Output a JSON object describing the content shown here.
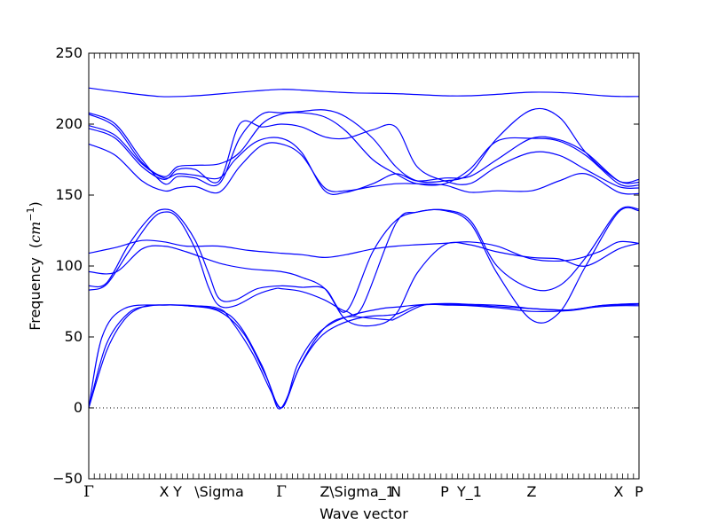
{
  "chart_data": {
    "type": "line",
    "xlabel": "Wave vector",
    "ylabel": "Frequency",
    "ylabel_unit": "cm",
    "ylabel_unit_exp": "−1",
    "ylim": [
      -50,
      250
    ],
    "xlim": [
      0,
      620
    ],
    "y_ticks": [
      -50,
      0,
      50,
      100,
      150,
      200,
      250
    ],
    "zero_line": true,
    "line_color": "#0000ff",
    "x_points": [
      {
        "label": "Γ",
        "x": 0
      },
      {
        "label": "X",
        "x": 85
      },
      {
        "label": "Y",
        "x": 100
      },
      {
        "label": "\\Sigma",
        "x": 147
      },
      {
        "label": "Γ",
        "x": 217
      },
      {
        "label": "Z",
        "x": 266
      },
      {
        "label": "\\Sigma_1",
        "x": 308
      },
      {
        "label": "N",
        "x": 346
      },
      {
        "label": "P",
        "x": 401
      },
      {
        "label": "Y_1",
        "x": 429
      },
      {
        "label": "Z",
        "x": 499
      },
      {
        "label": "X",
        "x": 597
      },
      {
        "label": "P",
        "x": 620
      }
    ],
    "series": [
      {
        "points": [
          [
            0,
            0
          ],
          [
            20,
            40
          ],
          [
            40,
            62
          ],
          [
            60,
            71
          ],
          [
            85,
            72.5
          ],
          [
            110,
            72
          ],
          [
            147,
            69
          ],
          [
            170,
            58
          ],
          [
            195,
            30
          ],
          [
            217,
            0
          ],
          [
            235,
            30
          ],
          [
            255,
            50
          ],
          [
            275,
            60
          ],
          [
            300,
            66
          ],
          [
            330,
            70
          ],
          [
            346,
            71
          ],
          [
            380,
            73
          ],
          [
            401,
            72.5
          ],
          [
            429,
            72
          ],
          [
            470,
            70
          ],
          [
            499,
            68
          ],
          [
            540,
            68.5
          ],
          [
            570,
            71
          ],
          [
            597,
            72
          ],
          [
            620,
            72
          ]
        ]
      },
      {
        "points": [
          [
            0,
            0
          ],
          [
            20,
            45
          ],
          [
            45,
            67
          ],
          [
            70,
            72
          ],
          [
            85,
            72.5
          ],
          [
            110,
            72
          ],
          [
            147,
            68
          ],
          [
            175,
            52
          ],
          [
            200,
            22
          ],
          [
            217,
            0
          ],
          [
            237,
            28
          ],
          [
            258,
            48
          ],
          [
            280,
            58
          ],
          [
            310,
            64
          ],
          [
            346,
            66
          ],
          [
            370,
            72
          ],
          [
            401,
            73
          ],
          [
            429,
            72.5
          ],
          [
            470,
            71
          ],
          [
            499,
            70
          ],
          [
            540,
            69
          ],
          [
            575,
            72
          ],
          [
            597,
            72.5
          ],
          [
            620,
            73
          ]
        ]
      },
      {
        "points": [
          [
            0,
            0
          ],
          [
            15,
            50
          ],
          [
            40,
            70
          ],
          [
            85,
            72.5
          ],
          [
            120,
            72
          ],
          [
            147,
            70
          ],
          [
            160,
            62
          ],
          [
            185,
            38
          ],
          [
            205,
            12
          ],
          [
            217,
            0
          ],
          [
            240,
            32
          ],
          [
            265,
            56
          ],
          [
            290,
            64
          ],
          [
            320,
            63
          ],
          [
            340,
            62
          ],
          [
            346,
            63
          ],
          [
            375,
            72
          ],
          [
            401,
            73.5
          ],
          [
            430,
            73
          ],
          [
            470,
            72
          ],
          [
            499,
            70
          ],
          [
            540,
            69
          ],
          [
            575,
            72
          ],
          [
            597,
            73
          ],
          [
            620,
            73.5
          ]
        ]
      },
      {
        "points": [
          [
            0,
            83
          ],
          [
            20,
            87
          ],
          [
            45,
            110
          ],
          [
            70,
            132
          ],
          [
            85,
            138
          ],
          [
            100,
            134
          ],
          [
            120,
            112
          ],
          [
            135,
            85
          ],
          [
            147,
            72
          ],
          [
            165,
            72
          ],
          [
            190,
            80
          ],
          [
            210,
            84
          ],
          [
            217,
            84
          ],
          [
            240,
            82
          ],
          [
            266,
            76
          ],
          [
            290,
            68
          ],
          [
            308,
            71
          ],
          [
            346,
            130
          ],
          [
            370,
            138
          ],
          [
            401,
            139
          ],
          [
            430,
            130
          ],
          [
            460,
            95
          ],
          [
            499,
            62
          ],
          [
            530,
            67
          ],
          [
            560,
            100
          ],
          [
            597,
            138
          ],
          [
            620,
            139
          ]
        ]
      },
      {
        "points": [
          [
            0,
            86
          ],
          [
            20,
            88
          ],
          [
            45,
            115
          ],
          [
            70,
            135
          ],
          [
            85,
            140
          ],
          [
            100,
            136
          ],
          [
            120,
            118
          ],
          [
            135,
            95
          ],
          [
            147,
            77
          ],
          [
            165,
            76
          ],
          [
            190,
            84
          ],
          [
            217,
            86
          ],
          [
            240,
            85
          ],
          [
            266,
            84
          ],
          [
            290,
            68
          ],
          [
            320,
            110
          ],
          [
            346,
            132
          ],
          [
            370,
            138
          ],
          [
            401,
            139.5
          ],
          [
            430,
            132
          ],
          [
            460,
            100
          ],
          [
            499,
            84
          ],
          [
            530,
            86
          ],
          [
            560,
            106
          ],
          [
            597,
            139
          ],
          [
            620,
            140
          ]
        ]
      },
      {
        "points": [
          [
            0,
            109
          ],
          [
            30,
            113
          ],
          [
            60,
            118
          ],
          [
            85,
            117
          ],
          [
            110,
            114
          ],
          [
            147,
            114
          ],
          [
            180,
            111
          ],
          [
            217,
            109
          ],
          [
            240,
            108
          ],
          [
            266,
            106
          ],
          [
            290,
            108
          ],
          [
            320,
            112
          ],
          [
            346,
            114
          ],
          [
            370,
            115
          ],
          [
            401,
            116
          ],
          [
            429,
            117
          ],
          [
            460,
            114
          ],
          [
            499,
            105
          ],
          [
            540,
            104
          ],
          [
            575,
            110
          ],
          [
            597,
            117
          ],
          [
            620,
            116
          ]
        ]
      },
      {
        "points": [
          [
            0,
            96
          ],
          [
            30,
            95.5
          ],
          [
            60,
            112
          ],
          [
            85,
            114
          ],
          [
            110,
            110
          ],
          [
            147,
            102
          ],
          [
            180,
            98
          ],
          [
            217,
            96
          ],
          [
            240,
            92
          ],
          [
            266,
            84
          ],
          [
            290,
            62
          ],
          [
            320,
            58
          ],
          [
            346,
            66
          ],
          [
            370,
            95
          ],
          [
            401,
            115
          ],
          [
            429,
            115
          ],
          [
            460,
            110
          ],
          [
            499,
            106
          ],
          [
            530,
            105
          ],
          [
            560,
            100
          ],
          [
            597,
            112
          ],
          [
            620,
            116
          ]
        ]
      },
      {
        "points": [
          [
            0,
            208
          ],
          [
            30,
            200
          ],
          [
            60,
            175
          ],
          [
            85,
            158
          ],
          [
            100,
            163
          ],
          [
            120,
            162
          ],
          [
            147,
            158
          ],
          [
            170,
            190
          ],
          [
            195,
            207
          ],
          [
            217,
            208
          ],
          [
            240,
            209
          ],
          [
            266,
            210
          ],
          [
            290,
            205
          ],
          [
            320,
            190
          ],
          [
            346,
            170
          ],
          [
            370,
            160
          ],
          [
            401,
            160
          ],
          [
            429,
            165
          ],
          [
            460,
            190
          ],
          [
            499,
            210
          ],
          [
            530,
            205
          ],
          [
            560,
            180
          ],
          [
            597,
            160
          ],
          [
            620,
            161
          ]
        ]
      },
      {
        "points": [
          [
            0,
            207
          ],
          [
            30,
            198
          ],
          [
            60,
            173
          ],
          [
            85,
            163
          ],
          [
            100,
            170
          ],
          [
            120,
            171
          ],
          [
            147,
            172
          ],
          [
            170,
            180
          ],
          [
            195,
            200
          ],
          [
            217,
            207
          ],
          [
            240,
            208
          ],
          [
            266,
            205
          ],
          [
            290,
            195
          ],
          [
            320,
            175
          ],
          [
            346,
            165
          ],
          [
            370,
            158
          ],
          [
            401,
            158
          ],
          [
            429,
            168
          ],
          [
            460,
            188
          ],
          [
            499,
            190
          ],
          [
            530,
            188
          ],
          [
            560,
            178
          ],
          [
            597,
            158
          ],
          [
            620,
            157
          ]
        ]
      },
      {
        "points": [
          [
            0,
            199
          ],
          [
            30,
            192
          ],
          [
            60,
            172
          ],
          [
            85,
            162
          ],
          [
            100,
            165
          ],
          [
            120,
            164
          ],
          [
            147,
            162
          ],
          [
            165,
            175
          ],
          [
            190,
            188
          ],
          [
            217,
            190
          ],
          [
            240,
            180
          ],
          [
            266,
            153
          ],
          [
            290,
            152
          ],
          [
            320,
            158
          ],
          [
            346,
            165
          ],
          [
            370,
            160
          ],
          [
            401,
            162
          ],
          [
            429,
            163
          ],
          [
            460,
            175
          ],
          [
            499,
            190
          ],
          [
            530,
            189
          ],
          [
            560,
            180
          ],
          [
            597,
            160
          ],
          [
            620,
            159
          ]
        ]
      },
      {
        "points": [
          [
            0,
            197
          ],
          [
            30,
            190
          ],
          [
            60,
            170
          ],
          [
            85,
            161
          ],
          [
            100,
            168
          ],
          [
            120,
            168
          ],
          [
            147,
            160
          ],
          [
            170,
            200
          ],
          [
            195,
            198
          ],
          [
            217,
            200
          ],
          [
            240,
            198
          ],
          [
            266,
            191
          ],
          [
            290,
            190
          ],
          [
            320,
            196
          ],
          [
            346,
            198
          ],
          [
            370,
            170
          ],
          [
            401,
            160
          ],
          [
            429,
            158
          ],
          [
            460,
            170
          ],
          [
            499,
            180
          ],
          [
            530,
            178
          ],
          [
            560,
            168
          ],
          [
            597,
            156
          ],
          [
            620,
            155
          ]
        ]
      },
      {
        "points": [
          [
            0,
            186
          ],
          [
            30,
            178
          ],
          [
            60,
            160
          ],
          [
            85,
            153
          ],
          [
            100,
            155
          ],
          [
            120,
            156
          ],
          [
            147,
            152
          ],
          [
            170,
            170
          ],
          [
            195,
            185
          ],
          [
            217,
            186
          ],
          [
            240,
            178
          ],
          [
            266,
            155
          ],
          [
            290,
            153
          ],
          [
            320,
            156
          ],
          [
            346,
            158
          ],
          [
            370,
            158
          ],
          [
            401,
            157
          ],
          [
            429,
            152
          ],
          [
            460,
            153
          ],
          [
            499,
            153
          ],
          [
            530,
            160
          ],
          [
            560,
            165
          ],
          [
            597,
            152
          ],
          [
            620,
            151
          ]
        ]
      },
      {
        "points": [
          [
            0,
            225.5
          ],
          [
            30,
            223
          ],
          [
            80,
            219.5
          ],
          [
            120,
            220
          ],
          [
            160,
            222
          ],
          [
            190,
            223.5
          ],
          [
            217,
            224.5
          ],
          [
            240,
            224
          ],
          [
            266,
            223
          ],
          [
            300,
            222
          ],
          [
            346,
            221.5
          ],
          [
            401,
            220
          ],
          [
            429,
            220
          ],
          [
            460,
            221
          ],
          [
            499,
            222.5
          ],
          [
            540,
            222
          ],
          [
            580,
            220
          ],
          [
            600,
            219.5
          ],
          [
            620,
            219.5
          ]
        ]
      }
    ]
  }
}
